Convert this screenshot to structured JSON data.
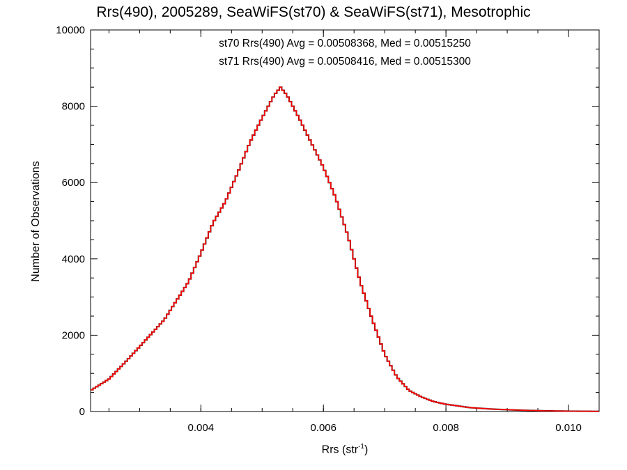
{
  "chart_data": {
    "type": "line",
    "title": "Rrs(490), 2005289, SeaWiFS(st70) & SeaWiFS(st71), Mesotrophic",
    "xlabel_main": "Rrs (str",
    "xlabel_sup": "-1",
    "xlabel_close": ")",
    "ylabel": "Number of Observations",
    "xlim": [
      0.0022,
      0.0105
    ],
    "ylim": [
      0,
      10000
    ],
    "x_ticks": [
      0.004,
      0.006,
      0.008,
      0.01
    ],
    "x_tick_labels": [
      "0.004",
      "0.006",
      "0.008",
      "0.010"
    ],
    "y_ticks": [
      0,
      2000,
      4000,
      6000,
      8000,
      10000
    ],
    "y_tick_labels": [
      "0",
      "2000",
      "4000",
      "6000",
      "8000",
      "10000"
    ],
    "annotations": [
      {
        "text": "st70 Rrs(490) Avg = 0.00508368, Med = 0.00515250",
        "color": "#000000"
      },
      {
        "text": "st71 Rrs(490) Avg = 0.00508416, Med = 0.00515300",
        "color": "#ff0000"
      }
    ],
    "series": [
      {
        "name": "st70",
        "color": "#000000",
        "points": [
          [
            0.0022,
            550
          ],
          [
            0.0025,
            850
          ],
          [
            0.0028,
            1350
          ],
          [
            0.003,
            1700
          ],
          [
            0.0032,
            2050
          ],
          [
            0.0034,
            2400
          ],
          [
            0.0036,
            2900
          ],
          [
            0.0038,
            3400
          ],
          [
            0.004,
            4150
          ],
          [
            0.0042,
            4950
          ],
          [
            0.0044,
            5500
          ],
          [
            0.0046,
            6250
          ],
          [
            0.0048,
            7050
          ],
          [
            0.005,
            7700
          ],
          [
            0.0052,
            8300
          ],
          [
            0.0053,
            8500
          ],
          [
            0.0054,
            8300
          ],
          [
            0.0056,
            7700
          ],
          [
            0.0058,
            7050
          ],
          [
            0.006,
            6400
          ],
          [
            0.0062,
            5600
          ],
          [
            0.0064,
            4600
          ],
          [
            0.0066,
            3400
          ],
          [
            0.0068,
            2400
          ],
          [
            0.007,
            1500
          ],
          [
            0.0072,
            900
          ],
          [
            0.0074,
            550
          ],
          [
            0.0076,
            380
          ],
          [
            0.0078,
            260
          ],
          [
            0.008,
            190
          ],
          [
            0.0084,
            100
          ],
          [
            0.0088,
            60
          ],
          [
            0.0092,
            35
          ],
          [
            0.0096,
            20
          ],
          [
            0.01,
            10
          ],
          [
            0.0105,
            5
          ]
        ]
      },
      {
        "name": "st71",
        "color": "#ff0000",
        "points": [
          [
            0.0022,
            550
          ],
          [
            0.0025,
            850
          ],
          [
            0.0028,
            1350
          ],
          [
            0.003,
            1700
          ],
          [
            0.0032,
            2050
          ],
          [
            0.0034,
            2400
          ],
          [
            0.0036,
            2900
          ],
          [
            0.0038,
            3400
          ],
          [
            0.004,
            4150
          ],
          [
            0.0042,
            4950
          ],
          [
            0.0044,
            5500
          ],
          [
            0.0046,
            6250
          ],
          [
            0.0048,
            7050
          ],
          [
            0.005,
            7700
          ],
          [
            0.0052,
            8300
          ],
          [
            0.0053,
            8500
          ],
          [
            0.0054,
            8300
          ],
          [
            0.0056,
            7700
          ],
          [
            0.0058,
            7050
          ],
          [
            0.006,
            6400
          ],
          [
            0.0062,
            5600
          ],
          [
            0.0064,
            4600
          ],
          [
            0.0066,
            3400
          ],
          [
            0.0068,
            2400
          ],
          [
            0.007,
            1500
          ],
          [
            0.0072,
            900
          ],
          [
            0.0074,
            550
          ],
          [
            0.0076,
            380
          ],
          [
            0.0078,
            260
          ],
          [
            0.008,
            190
          ],
          [
            0.0084,
            100
          ],
          [
            0.0088,
            60
          ],
          [
            0.0092,
            35
          ],
          [
            0.0096,
            20
          ],
          [
            0.01,
            10
          ],
          [
            0.0105,
            5
          ]
        ]
      }
    ]
  }
}
